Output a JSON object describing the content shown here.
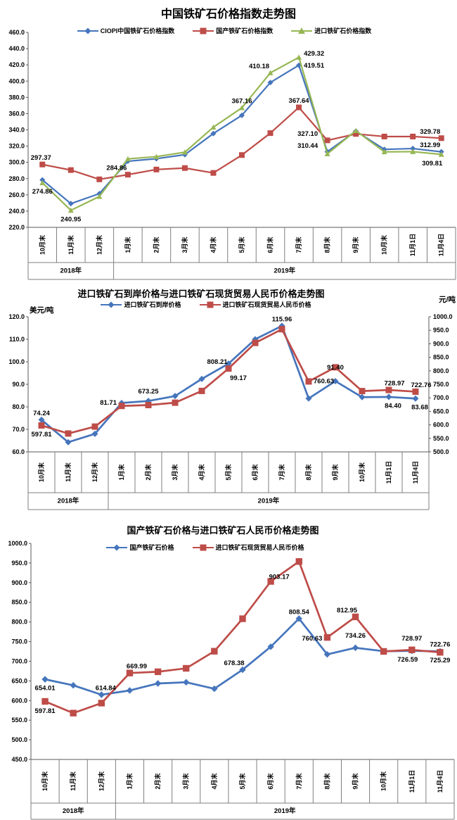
{
  "categories": [
    "10月末",
    "11月末",
    "12月末",
    "1月末",
    "2月末",
    "3月末",
    "4月末",
    "5月末",
    "6月末",
    "7月末",
    "8月末",
    "9月末",
    "10月末",
    "11月1日",
    "11月4日"
  ],
  "year_groups": [
    {
      "label": "2018年",
      "count": 3
    },
    {
      "label": "2019年",
      "count": 12
    }
  ],
  "colors": {
    "blue": "#4575BC",
    "red": "#BE4C48",
    "green": "#97B755",
    "axis": "#595959",
    "grid": "#7F7F7F"
  },
  "chart_data": [
    {
      "type": "line",
      "title": "中国铁矿石价格指数走势图",
      "legend_position": "top",
      "grid": false,
      "axes": {
        "left": {
          "min": 220,
          "max": 460,
          "step": 20,
          "unit": ""
        }
      },
      "series": [
        {
          "name": "CIOPI中国铁矿石价格指数",
          "color": "#4575BC",
          "marker": "diamond",
          "axis": "left",
          "values": [
            278.4,
            249.2,
            261.5,
            301.4,
            304.5,
            309.5,
            335.5,
            357.9,
            398.3,
            419.51,
            313.1,
            338.4,
            316.0,
            317.0,
            312.99
          ],
          "point_labels": [
            {
              "i": 9,
              "text": "419.51",
              "pos": "right",
              "dy": 1
            },
            {
              "i": 14,
              "text": "312.99",
              "pos": "above-left"
            }
          ]
        },
        {
          "name": "国产铁矿石价格指数",
          "color": "#BE4C48",
          "marker": "square",
          "axis": "left",
          "values": [
            297.37,
            290.5,
            279.1,
            284.86,
            291.2,
            293.0,
            287.0,
            309.0,
            336.0,
            367.64,
            327.1,
            335.0,
            331.8,
            331.8,
            329.78
          ],
          "point_labels": [
            {
              "i": 0,
              "text": "297.37",
              "pos": "above",
              "dx": -2
            },
            {
              "i": 3,
              "text": "284.86",
              "pos": "above-left"
            },
            {
              "i": 9,
              "text": "367.64",
              "pos": "above"
            },
            {
              "i": 10,
              "text": "327.10",
              "pos": "above-left",
              "dx": -12
            },
            {
              "i": 14,
              "text": "329.78",
              "pos": "above-left"
            }
          ]
        },
        {
          "name": "进口铁矿石价格指数",
          "color": "#97B755",
          "marker": "triangle",
          "axis": "left",
          "values": [
            274.86,
            240.95,
            258.0,
            304.3,
            307.0,
            312.5,
            343.3,
            367.16,
            410.18,
            429.32,
            310.44,
            339.0,
            312.9,
            313.2,
            309.81
          ],
          "point_labels": [
            {
              "i": 0,
              "text": "274.86",
              "pos": "below"
            },
            {
              "i": 1,
              "text": "240.95",
              "pos": "below"
            },
            {
              "i": 7,
              "text": "367.16",
              "pos": "above"
            },
            {
              "i": 8,
              "text": "410.18",
              "pos": "above-left"
            },
            {
              "i": 9,
              "text": "429.32",
              "pos": "right",
              "dy": -5
            },
            {
              "i": 10,
              "text": "310.44",
              "pos": "above-left",
              "dx": -12,
              "dy": -2
            },
            {
              "i": 14,
              "text": "309.81",
              "pos": "below",
              "dx": -13
            }
          ]
        }
      ]
    },
    {
      "type": "line",
      "title": "进口铁矿石到岸价格与进口铁矿石现货贸易人民币价格走势图",
      "legend_position": "top",
      "grid": false,
      "axes": {
        "left": {
          "min": 60,
          "max": 120,
          "step": 10,
          "unit": "美元/吨"
        },
        "right": {
          "min": 500,
          "max": 1000,
          "step": 50,
          "unit": "元/吨"
        }
      },
      "series": [
        {
          "name": "进口铁矿石到岸价格",
          "color": "#4575BC",
          "marker": "diamond",
          "axis": "left",
          "values": [
            74.24,
            64.3,
            68.0,
            81.71,
            82.6,
            84.8,
            92.4,
            99.17,
            110.0,
            115.96,
            83.7,
            91.4,
            84.3,
            84.4,
            83.68
          ],
          "point_labels": [
            {
              "i": 0,
              "text": "74.24",
              "pos": "above"
            },
            {
              "i": 3,
              "text": "81.71",
              "pos": "left"
            },
            {
              "i": 7,
              "text": "99.17",
              "pos": "below",
              "dx": 14,
              "dy": 8
            },
            {
              "i": 9,
              "text": "115.96",
              "pos": "above"
            },
            {
              "i": 11,
              "text": "91.40",
              "pos": "above",
              "dy": -10
            },
            {
              "i": 13,
              "text": "84.40",
              "pos": "below",
              "dx": 6
            },
            {
              "i": 14,
              "text": "83.68",
              "pos": "below",
              "dx": 6
            }
          ]
        },
        {
          "name": "进口铁矿石现货贸易人民币价格",
          "color": "#BE4C48",
          "marker": "square",
          "axis": "right",
          "values": [
            597.81,
            568.0,
            593.5,
            669.99,
            673.25,
            682.0,
            725.5,
            808.21,
            903.17,
            953.9,
            760.63,
            812.95,
            725.0,
            728.97,
            722.76
          ],
          "point_labels": [
            {
              "i": 0,
              "text": "597.81",
              "pos": "below"
            },
            {
              "i": 4,
              "text": "673.25",
              "pos": "above",
              "dy": -10
            },
            {
              "i": 7,
              "text": "808.21",
              "pos": "above-left"
            },
            {
              "i": 10,
              "text": "760.63",
              "pos": "right"
            },
            {
              "i": 13,
              "text": "728.97",
              "pos": "above",
              "dx": 8
            },
            {
              "i": 14,
              "text": "722.76",
              "pos": "above",
              "dx": 8
            }
          ]
        }
      ]
    },
    {
      "type": "line",
      "title": "国产铁矿石价格与进口铁矿石人民币价格走势图",
      "legend_position": "top",
      "grid": false,
      "axes": {
        "left": {
          "min": 450,
          "max": 1000,
          "step": 50,
          "unit": ""
        }
      },
      "series": [
        {
          "name": "国产铁矿石价格",
          "color": "#4575BC",
          "marker": "diamond",
          "axis": "left",
          "values": [
            654.01,
            638.7,
            614.84,
            625.6,
            643.5,
            646.5,
            630.0,
            678.38,
            737.0,
            808.54,
            717.5,
            734.26,
            725.5,
            726.59,
            725.29
          ],
          "point_labels": [
            {
              "i": 0,
              "text": "654.01",
              "pos": "below"
            },
            {
              "i": 2,
              "text": "614.84",
              "pos": "above",
              "dx": 6
            },
            {
              "i": 7,
              "text": "678.38",
              "pos": "above",
              "dx": -12
            },
            {
              "i": 9,
              "text": "808.54",
              "pos": "above"
            },
            {
              "i": 11,
              "text": "734.26",
              "pos": "above",
              "dy": -8
            },
            {
              "i": 13,
              "text": "726.59",
              "pos": "below",
              "dx": -6
            },
            {
              "i": 14,
              "text": "725.29",
              "pos": "below"
            }
          ]
        },
        {
          "name": "进口铁矿石现货贸易人民币价格",
          "color": "#BE4C48",
          "marker": "square",
          "axis": "left",
          "values": [
            597.81,
            568.0,
            593.5,
            669.99,
            673.25,
            682.0,
            725.5,
            808.21,
            903.17,
            953.9,
            760.63,
            812.95,
            725.0,
            728.97,
            722.76
          ],
          "point_labels": [
            {
              "i": 0,
              "text": "597.81",
              "pos": "below",
              "dy": 1
            },
            {
              "i": 3,
              "text": "669.99",
              "pos": "above",
              "dx": 10
            },
            {
              "i": 8,
              "text": "903.17",
              "pos": "above",
              "dx": 12,
              "dy": 3
            },
            {
              "i": 10,
              "text": "760.63",
              "pos": "left",
              "dy": 2
            },
            {
              "i": 11,
              "text": "812.95",
              "pos": "above",
              "dx": -12
            },
            {
              "i": 13,
              "text": "728.97",
              "pos": "above",
              "dy": -7
            },
            {
              "i": 14,
              "text": "722.76",
              "pos": "above",
              "dy": -2
            }
          ]
        }
      ]
    }
  ]
}
